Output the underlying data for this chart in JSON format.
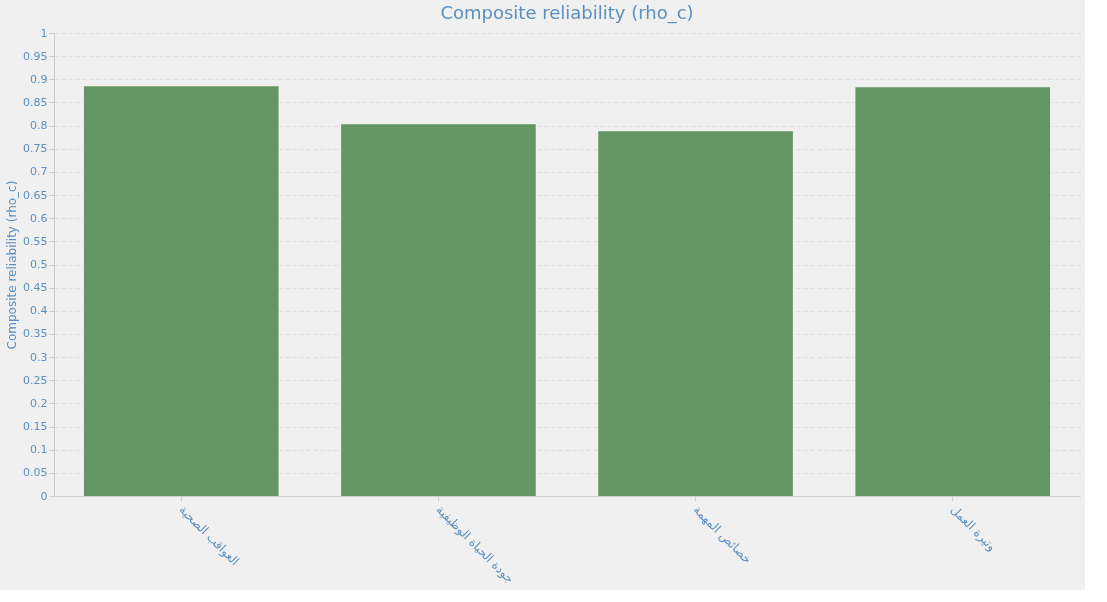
{
  "chart_data": {
    "type": "bar",
    "title": "Composite reliability (rho_c)",
    "ylabel": "Composite reliability (rho_c)",
    "categories": [
      "العواقب الصحية",
      "جودة الحياة الوظيفية",
      "خصائص المهمة",
      "وتيرة العمل"
    ],
    "values": [
      0.885,
      0.803,
      0.788,
      0.883
    ],
    "color": "#649664",
    "ylim": [
      0,
      1
    ],
    "yticks": [
      0,
      0.05,
      0.1,
      0.15,
      0.2,
      0.25,
      0.3,
      0.35,
      0.4,
      0.45,
      0.5,
      0.55,
      0.6,
      0.65,
      0.7,
      0.75,
      0.8,
      0.85,
      0.9,
      0.95,
      1
    ],
    "grid": "y"
  }
}
